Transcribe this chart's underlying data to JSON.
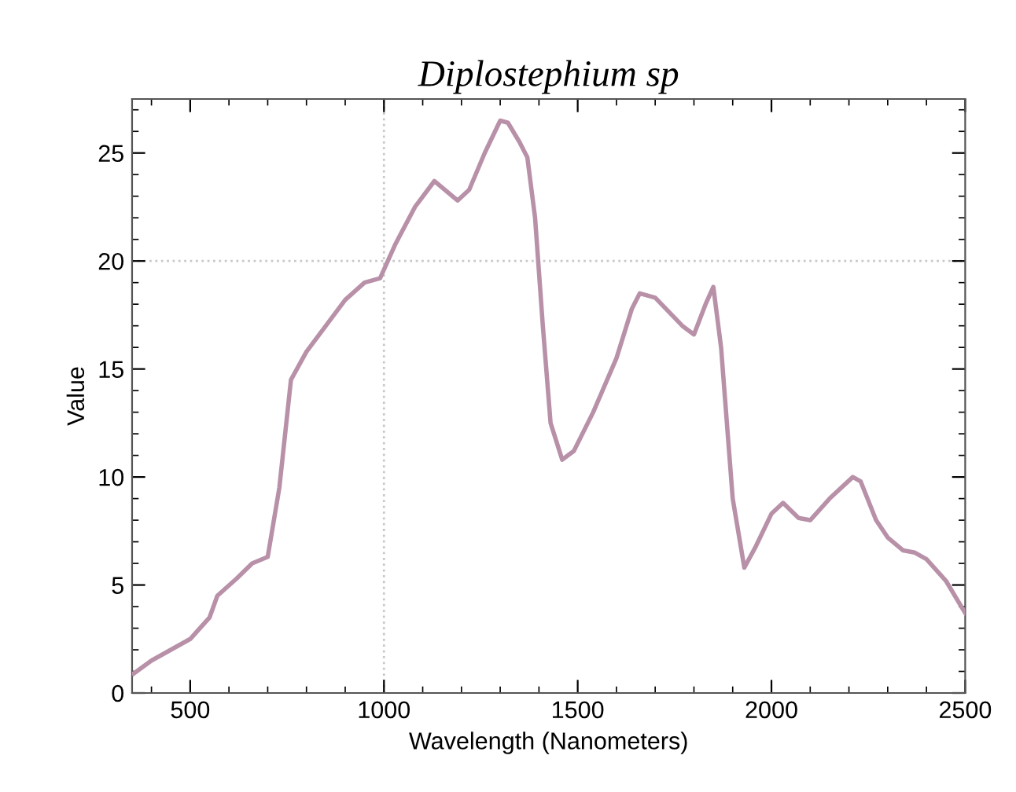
{
  "chart_data": {
    "type": "line",
    "title": "Diplostephium sp",
    "xlabel": "Wavelength (Nanometers)",
    "ylabel": "Value",
    "xlim": [
      350,
      2500
    ],
    "ylim": [
      0,
      27.5
    ],
    "xticks": [
      500,
      1000,
      1500,
      2000,
      2500
    ],
    "yticks": [
      0,
      5,
      10,
      15,
      20,
      25
    ],
    "ref_lines": [
      {
        "axis": "x",
        "value": 1000,
        "line_style": "dotted",
        "color": "#c8c8c8"
      },
      {
        "axis": "y",
        "value": 20,
        "line_style": "dotted",
        "color": "#c8c8c8"
      }
    ],
    "grid": false,
    "legend": false,
    "series": [
      {
        "color": "#b891a8",
        "x": [
          354,
          400,
          500,
          550,
          570,
          620,
          660,
          700,
          730,
          760,
          800,
          850,
          900,
          950,
          990,
          1030,
          1080,
          1130,
          1190,
          1220,
          1260,
          1300,
          1320,
          1350,
          1370,
          1390,
          1410,
          1430,
          1460,
          1490,
          1540,
          1600,
          1640,
          1660,
          1700,
          1770,
          1800,
          1830,
          1850,
          1870,
          1900,
          1930,
          1960,
          2000,
          2030,
          2070,
          2100,
          2150,
          2210,
          2230,
          2270,
          2300,
          2340,
          2370,
          2400,
          2450,
          2490,
          2500
        ],
        "values": [
          0.9,
          1.5,
          2.5,
          3.5,
          4.5,
          5.3,
          6.0,
          6.3,
          9.5,
          14.5,
          15.8,
          17,
          18.2,
          19,
          19.2,
          20.8,
          22.5,
          23.7,
          22.8,
          23.3,
          25,
          26.5,
          26.4,
          25.5,
          24.8,
          22,
          17,
          12.5,
          10.8,
          11.2,
          13,
          15.5,
          17.8,
          18.5,
          18.3,
          17,
          16.6,
          18,
          18.8,
          16,
          9,
          5.8,
          6.8,
          8.3,
          8.8,
          8.1,
          8.0,
          9,
          10,
          9.8,
          8,
          7.2,
          6.6,
          6.5,
          6.2,
          5.2,
          4,
          3.7
        ]
      }
    ]
  }
}
